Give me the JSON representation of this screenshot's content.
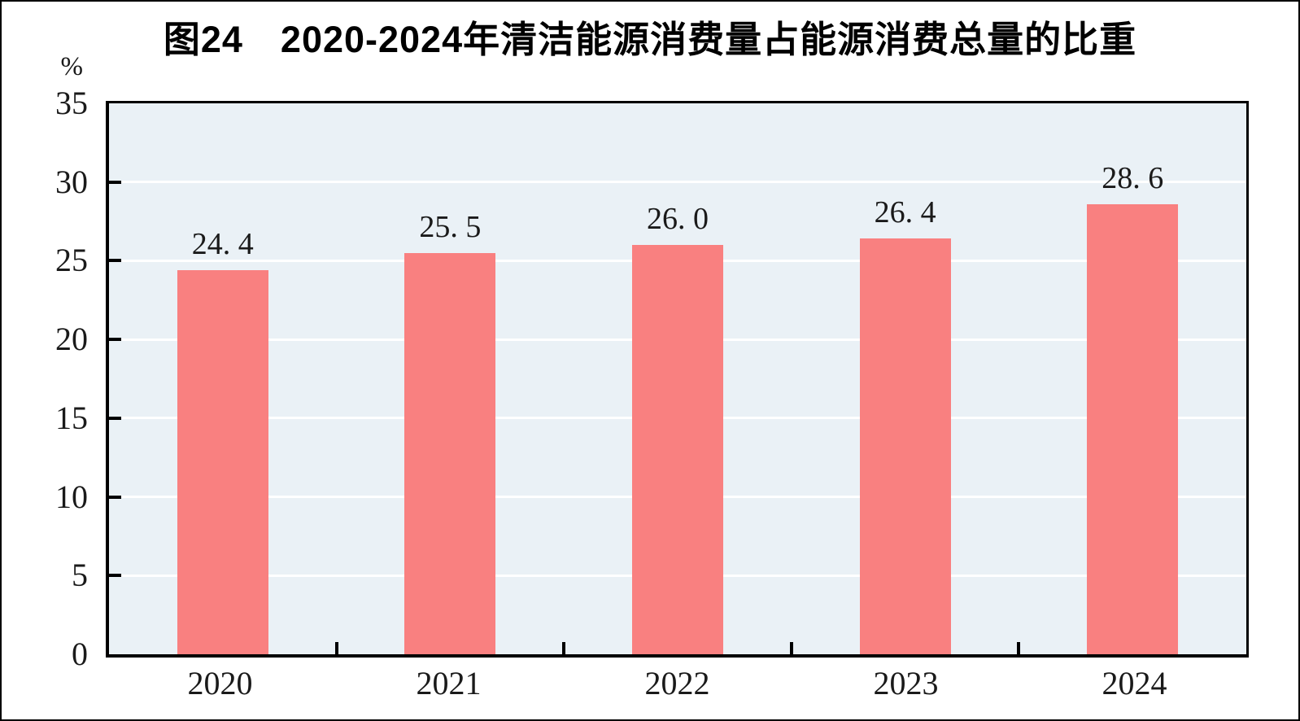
{
  "chart_data": {
    "type": "bar",
    "title": "图24　2020-2024年清洁能源消费量占能源消费总量的比重",
    "unit_label": "%",
    "categories": [
      "2020",
      "2021",
      "2022",
      "2023",
      "2024"
    ],
    "values": [
      24.4,
      25.5,
      26.0,
      26.4,
      28.6
    ],
    "value_labels": [
      "24. 4",
      "25. 5",
      "26. 0",
      "26. 4",
      "28. 6"
    ],
    "series_name": "清洁能源消费量占能源消费总量的比重",
    "xlabel": "",
    "ylabel": "%",
    "ylim": [
      0,
      35
    ],
    "ytick_interval": 5,
    "yticks": [
      0,
      5,
      10,
      15,
      20,
      25,
      30,
      35
    ],
    "ytick_labels": [
      "0",
      "5",
      "10",
      "15",
      "20",
      "25",
      "30",
      "35"
    ],
    "grid": "horizontal",
    "legend_position": "none",
    "colors": {
      "bar_fill": "#F98080",
      "plot_background": "#EAF1F6",
      "gridline": "#FFFFFF",
      "axis_line": "#000000",
      "text": "#1a1a1a",
      "page_background": "#FFFFFF",
      "page_border": "#000000"
    }
  }
}
